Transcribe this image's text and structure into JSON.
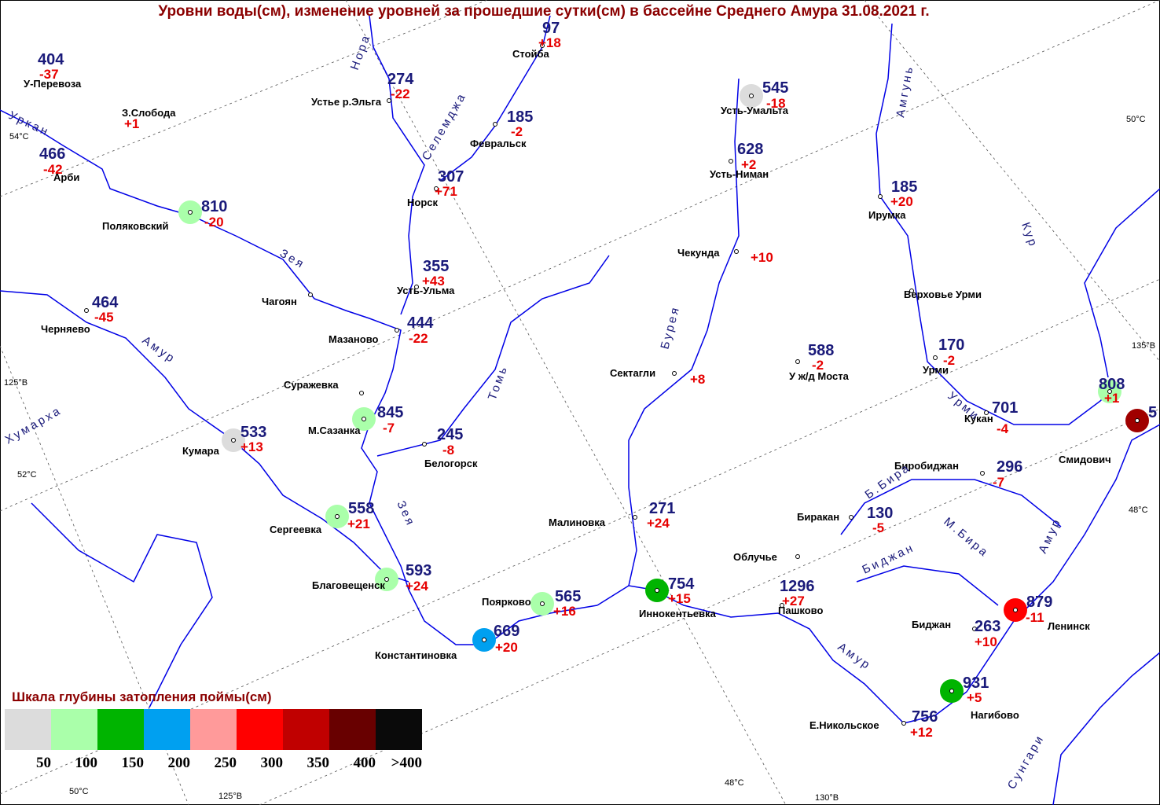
{
  "title": "Уровни воды(см), изменение уровней за прошедшие сутки(см) в бассейне Среднего Амура 31.08.2021 г.",
  "legend": {
    "title": "Шкала глубины затопления поймы(см)",
    "items": [
      {
        "color": "#dcdcdc",
        "label": "50"
      },
      {
        "color": "#aaffaa",
        "label": "100"
      },
      {
        "color": "#00b400",
        "label": "150"
      },
      {
        "color": "#00a0f0",
        "label": "200"
      },
      {
        "color": "#ff9a9a",
        "label": "250"
      },
      {
        "color": "#ff0000",
        "label": "300"
      },
      {
        "color": "#c00000",
        "label": "350"
      },
      {
        "color": "#680000",
        "label": "400"
      },
      {
        "color": "#0a0a0a",
        "label": ">400"
      }
    ]
  },
  "stations": [
    {
      "name": "У-Перевоза",
      "level": 404,
      "change": "-37"
    },
    {
      "name": "З.Слобода",
      "change": "+1"
    },
    {
      "name": "Арби",
      "level": 466,
      "change": "-42"
    },
    {
      "name": "Поляковский",
      "level": 810,
      "change": "-20",
      "flood_color": "#aaffaa"
    },
    {
      "name": "Устье р.Эльга",
      "level": 274,
      "change": "-22"
    },
    {
      "name": "Стойба",
      "level": 97,
      "change": "+18"
    },
    {
      "name": "Февральск",
      "level": 185,
      "change": "-2"
    },
    {
      "name": "Норск",
      "level": 307,
      "change": "+71"
    },
    {
      "name": "Усть-Ульма",
      "level": 355,
      "change": "+43"
    },
    {
      "name": "Мазаново",
      "level": 444,
      "change": "-22"
    },
    {
      "name": "Чагоян"
    },
    {
      "name": "Черняево",
      "level": 464,
      "change": "-45"
    },
    {
      "name": "Суражевка"
    },
    {
      "name": "М.Сазанка",
      "level": 845,
      "change": "-7",
      "flood_color": "#aaffaa"
    },
    {
      "name": "Белогорск",
      "level": 245,
      "change": "-8"
    },
    {
      "name": "Кумара",
      "level": 533,
      "change": "+13",
      "flood_color": "#dcdcdc"
    },
    {
      "name": "Сергеевка",
      "level": 558,
      "change": "+21",
      "flood_color": "#aaffaa"
    },
    {
      "name": "Благовещенск",
      "level": 593,
      "change": "+24",
      "flood_color": "#aaffaa"
    },
    {
      "name": "Поярково",
      "level": 565,
      "change": "+16",
      "flood_color": "#aaffaa"
    },
    {
      "name": "Константиновка",
      "level": 669,
      "change": "+20",
      "flood_color": "#00a0f0"
    },
    {
      "name": "Малиновка",
      "level": 271,
      "change": "+24"
    },
    {
      "name": "Иннокентьевка",
      "level": 754,
      "change": "+15",
      "flood_color": "#00b400"
    },
    {
      "name": "Пашково",
      "level": 1296,
      "change": "+27"
    },
    {
      "name": "Облучье"
    },
    {
      "name": "Биракан",
      "level": 130,
      "change": "-5"
    },
    {
      "name": "Усть-Умальта",
      "level": 545,
      "change": "-18",
      "flood_color": "#dcdcdc"
    },
    {
      "name": "Усть-Ниман",
      "level": 628,
      "change": "+2"
    },
    {
      "name": "Чекунда",
      "change": "+10"
    },
    {
      "name": "Сектагли",
      "change": "+8"
    },
    {
      "name": "У ж/д Моста",
      "level": 588,
      "change": "-2"
    },
    {
      "name": "Ирумка",
      "level": 185,
      "change": "+20"
    },
    {
      "name": "Верховье Урми"
    },
    {
      "name": "Урми",
      "level": 170,
      "change": "-2"
    },
    {
      "name": "Кукан",
      "level": 701,
      "change": "-4"
    },
    {
      "name": "Биробиджан",
      "level": 296,
      "change": "-7"
    },
    {
      "name": "Смидович",
      "level": 808,
      "change": "+1",
      "flood_color": "#aaffaa"
    },
    {
      "level": 5,
      "flood_color": "#a00000"
    },
    {
      "name": "Ленинск",
      "level": 879,
      "change": "-11",
      "flood_color": "#ff0000"
    },
    {
      "name": "Биджан",
      "level": 263,
      "change": "+10"
    },
    {
      "name": "Нагибово",
      "level": 931,
      "change": "+5",
      "flood_color": "#00b400"
    },
    {
      "name": "Е.Никольское",
      "level": 756,
      "change": "+12"
    }
  ],
  "rivers": [
    "Уркан",
    "Зея",
    "Зея",
    "Амур",
    "Хумарха",
    "Нора",
    "Селемджа",
    "Томь",
    "Бурея",
    "Амгунь",
    "Кур",
    "Урми",
    "Б.Бира",
    "М.Бира",
    "Биджан",
    "Амур",
    "Амур",
    "Сунгари"
  ],
  "grid_labels": [
    "54°C",
    "125°В",
    "52°C",
    "50°C",
    "125°В",
    "130°В",
    "48°C",
    "48°C",
    "50°С",
    "135°В"
  ]
}
